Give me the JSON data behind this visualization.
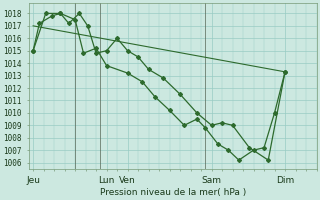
{
  "title": "Pression niveau de la mer( hPa )",
  "bg_color": "#cce8e0",
  "grid_color": "#99ccc4",
  "line_color": "#2d6a2d",
  "ylim": [
    1005.5,
    1018.8
  ],
  "yticks": [
    1006,
    1007,
    1008,
    1009,
    1010,
    1011,
    1012,
    1013,
    1014,
    1015,
    1016,
    1017,
    1018
  ],
  "xtick_labels": [
    "Jeu",
    "Lun",
    "Ven",
    "Sam",
    "Dim"
  ],
  "xtick_positions": [
    0.0,
    3.5,
    4.5,
    8.5,
    12.0
  ],
  "xlim": [
    -0.2,
    13.5
  ],
  "vlines": [
    2.0,
    3.2,
    8.2
  ],
  "line1_x": [
    0.0,
    0.3,
    0.9,
    1.3,
    1.7,
    2.2,
    2.6,
    3.0,
    3.5,
    4.0,
    4.5,
    5.0,
    5.5,
    6.2,
    7.0,
    7.8,
    8.5,
    9.0,
    9.5,
    10.3,
    11.2,
    12.0
  ],
  "line1_y": [
    1015.0,
    1017.2,
    1017.8,
    1018.0,
    1017.2,
    1018.0,
    1017.0,
    1014.8,
    1015.0,
    1016.0,
    1015.0,
    1014.5,
    1013.5,
    1012.8,
    1011.5,
    1010.0,
    1009.0,
    1009.2,
    1009.0,
    1007.2,
    1006.2,
    1013.3
  ],
  "line2_x": [
    0.0,
    0.6,
    1.3,
    2.0,
    2.4,
    3.0,
    3.5,
    4.5,
    5.2,
    5.8,
    6.5,
    7.2,
    7.8,
    8.2,
    8.8,
    9.3,
    9.8,
    10.5,
    11.0,
    11.5,
    12.0
  ],
  "line2_y": [
    1015.0,
    1018.0,
    1018.0,
    1017.5,
    1014.8,
    1015.2,
    1013.8,
    1013.2,
    1012.5,
    1011.3,
    1010.2,
    1009.0,
    1009.5,
    1008.8,
    1007.5,
    1007.0,
    1006.2,
    1007.0,
    1007.2,
    1010.0,
    1013.3
  ],
  "line3_x": [
    0.0,
    12.0
  ],
  "line3_y": [
    1017.0,
    1013.3
  ]
}
